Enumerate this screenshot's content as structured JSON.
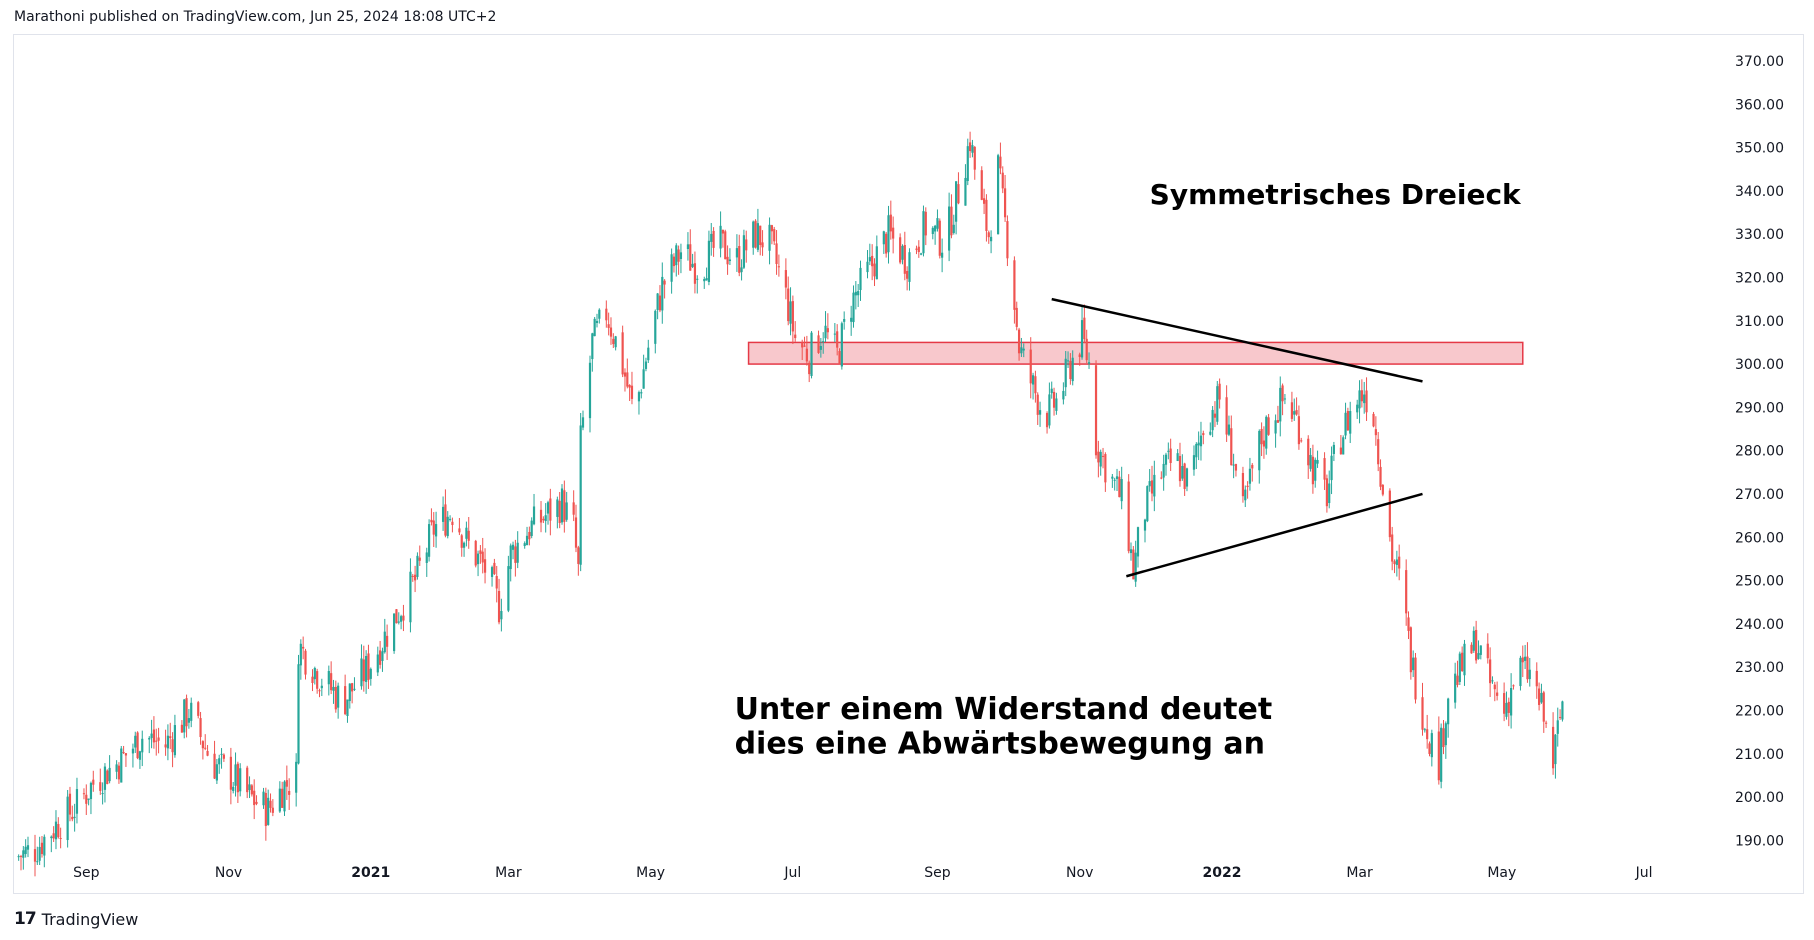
{
  "header": {
    "publisher_line": "Marathoni published on TradingView.com, Jun 25, 2024 18:08 UTC+2"
  },
  "footer": {
    "logo_mark": "17",
    "logo_text": "TradingView"
  },
  "colors": {
    "up": "#26a69a",
    "down": "#ef5350",
    "zone_fill": "#f8c8cc",
    "zone_stroke": "#e53946",
    "trendline": "#000000"
  },
  "chart_data": {
    "type": "candlestick",
    "y_range": [
      182,
      376
    ],
    "y_ticks": [
      "370.00",
      "360.00",
      "350.00",
      "340.00",
      "330.00",
      "320.00",
      "310.00",
      "300.00",
      "290.00",
      "280.00",
      "270.00",
      "260.00",
      "250.00",
      "240.00",
      "230.00",
      "220.00",
      "210.00",
      "200.00",
      "190.00"
    ],
    "y_tick_values": [
      370,
      360,
      350,
      340,
      330,
      320,
      310,
      300,
      290,
      280,
      270,
      260,
      250,
      240,
      230,
      220,
      210,
      200,
      190
    ],
    "x_range": [
      "2020-08-01",
      "2022-07-31"
    ],
    "x_ticks": [
      {
        "label": "Sep",
        "date": "2020-09-01",
        "bold": false
      },
      {
        "label": "Nov",
        "date": "2020-11-01",
        "bold": false
      },
      {
        "label": "2021",
        "date": "2021-01-01",
        "bold": true
      },
      {
        "label": "Mar",
        "date": "2021-03-01",
        "bold": false
      },
      {
        "label": "May",
        "date": "2021-05-01",
        "bold": false
      },
      {
        "label": "Jul",
        "date": "2021-07-01",
        "bold": false
      },
      {
        "label": "Sep",
        "date": "2021-09-01",
        "bold": false
      },
      {
        "label": "Nov",
        "date": "2021-11-01",
        "bold": false
      },
      {
        "label": "2022",
        "date": "2022-01-01",
        "bold": true
      },
      {
        "label": "Mar",
        "date": "2022-03-01",
        "bold": false
      },
      {
        "label": "May",
        "date": "2022-05-01",
        "bold": false
      },
      {
        "label": "Jul",
        "date": "2022-07-01",
        "bold": false
      }
    ],
    "price_path": [
      [
        "2020-08-01",
        186
      ],
      [
        "2020-08-10",
        188
      ],
      [
        "2020-08-20",
        194
      ],
      [
        "2020-08-28",
        198
      ],
      [
        "2020-09-05",
        204
      ],
      [
        "2020-09-15",
        208
      ],
      [
        "2020-09-25",
        214
      ],
      [
        "2020-10-05",
        212
      ],
      [
        "2020-10-15",
        220
      ],
      [
        "2020-10-25",
        208
      ],
      [
        "2020-11-02",
        205
      ],
      [
        "2020-11-10",
        200
      ],
      [
        "2020-11-18",
        197
      ],
      [
        "2020-11-24",
        202
      ],
      [
        "2020-11-30",
        205
      ],
      [
        "2020-12-01",
        235
      ],
      [
        "2020-12-10",
        228
      ],
      [
        "2020-12-20",
        222
      ],
      [
        "2020-12-31",
        230
      ],
      [
        "2021-01-10",
        240
      ],
      [
        "2021-01-20",
        250
      ],
      [
        "2021-01-28",
        262
      ],
      [
        "2021-02-05",
        266
      ],
      [
        "2021-02-12",
        258
      ],
      [
        "2021-02-20",
        252
      ],
      [
        "2021-02-25",
        244
      ],
      [
        "2021-03-02",
        256
      ],
      [
        "2021-03-10",
        262
      ],
      [
        "2021-03-17",
        265
      ],
      [
        "2021-03-24",
        268
      ],
      [
        "2021-03-29",
        262
      ],
      [
        "2021-03-31",
        252
      ],
      [
        "2021-04-01",
        282
      ],
      [
        "2021-04-06",
        305
      ],
      [
        "2021-04-12",
        312
      ],
      [
        "2021-04-18",
        302
      ],
      [
        "2021-04-24",
        288
      ],
      [
        "2021-04-30",
        304
      ],
      [
        "2021-05-06",
        318
      ],
      [
        "2021-05-14",
        326
      ],
      [
        "2021-05-22",
        322
      ],
      [
        "2021-05-30",
        328
      ],
      [
        "2021-06-07",
        324
      ],
      [
        "2021-06-15",
        330
      ],
      [
        "2021-06-21",
        328
      ],
      [
        "2021-06-27",
        318
      ],
      [
        "2021-07-02",
        306
      ],
      [
        "2021-07-08",
        302
      ],
      [
        "2021-07-14",
        308
      ],
      [
        "2021-07-20",
        302
      ],
      [
        "2021-07-26",
        314
      ],
      [
        "2021-08-03",
        322
      ],
      [
        "2021-08-11",
        330
      ],
      [
        "2021-08-19",
        324
      ],
      [
        "2021-08-27",
        332
      ],
      [
        "2021-09-04",
        328
      ],
      [
        "2021-09-10",
        340
      ],
      [
        "2021-09-15",
        352
      ],
      [
        "2021-09-19",
        338
      ],
      [
        "2021-09-23",
        330
      ],
      [
        "2021-09-27",
        345
      ],
      [
        "2021-10-03",
        320
      ],
      [
        "2021-10-06",
        304
      ],
      [
        "2021-10-11",
        296
      ],
      [
        "2021-10-17",
        288
      ],
      [
        "2021-10-23",
        292
      ],
      [
        "2021-10-28",
        300
      ],
      [
        "2021-11-02",
        306
      ],
      [
        "2021-11-05",
        300
      ],
      [
        "2021-11-08",
        282
      ],
      [
        "2021-11-14",
        274
      ],
      [
        "2021-11-20",
        268
      ],
      [
        "2021-11-24",
        252
      ],
      [
        "2021-11-28",
        265
      ],
      [
        "2021-12-05",
        274
      ],
      [
        "2021-12-12",
        278
      ],
      [
        "2021-12-18",
        272
      ],
      [
        "2021-12-24",
        286
      ],
      [
        "2021-12-31",
        292
      ],
      [
        "2022-01-06",
        278
      ],
      [
        "2022-01-10",
        265
      ],
      [
        "2022-01-16",
        280
      ],
      [
        "2022-01-22",
        288
      ],
      [
        "2022-01-28",
        292
      ],
      [
        "2022-02-03",
        286
      ],
      [
        "2022-02-09",
        276
      ],
      [
        "2022-02-15",
        270
      ],
      [
        "2022-02-20",
        282
      ],
      [
        "2022-02-26",
        290
      ],
      [
        "2022-03-03",
        294
      ],
      [
        "2022-03-07",
        288
      ],
      [
        "2022-03-11",
        272
      ],
      [
        "2022-03-15",
        256
      ],
      [
        "2022-03-19",
        248
      ],
      [
        "2022-03-23",
        232
      ],
      [
        "2022-03-27",
        222
      ],
      [
        "2022-03-31",
        214
      ],
      [
        "2022-04-04",
        208
      ],
      [
        "2022-04-08",
        224
      ],
      [
        "2022-04-14",
        230
      ],
      [
        "2022-04-20",
        236
      ],
      [
        "2022-04-26",
        226
      ],
      [
        "2022-05-02",
        220
      ],
      [
        "2022-05-08",
        230
      ],
      [
        "2022-05-14",
        228
      ],
      [
        "2022-05-19",
        218
      ],
      [
        "2022-05-23",
        208
      ],
      [
        "2022-05-27",
        222
      ]
    ],
    "resistance_zone": {
      "x_start": "2021-06-12",
      "x_end": "2022-05-10",
      "y_low": 300,
      "y_high": 305
    },
    "trendlines": [
      {
        "name": "upper",
        "from": [
          "2021-10-20",
          315
        ],
        "to": [
          "2022-03-28",
          296
        ]
      },
      {
        "name": "lower",
        "from": [
          "2021-11-21",
          251
        ],
        "to": [
          "2022-03-28",
          270
        ]
      }
    ],
    "annotations": [
      {
        "lines": [
          "Symmetrisches Dreieck"
        ],
        "at": [
          "2021-12-01",
          337
        ],
        "size": 28
      },
      {
        "lines": [
          "Unter einem Widerstand deutet",
          "dies eine Abwärtsbewegung an"
        ],
        "at": [
          "2021-06-06",
          218
        ],
        "size": 30
      }
    ]
  }
}
